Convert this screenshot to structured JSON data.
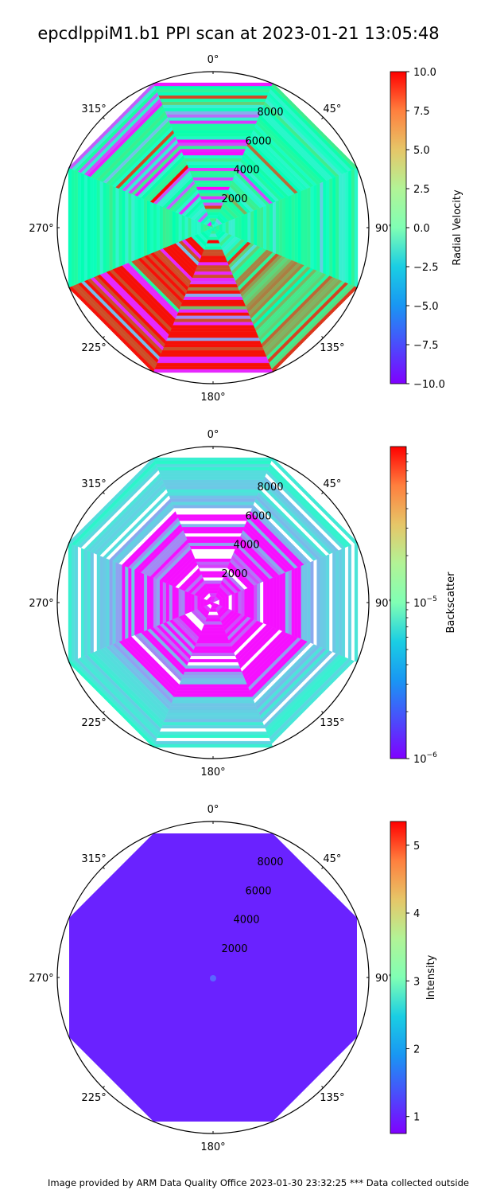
{
  "title": "epcdlppiM1.b1 PPI scan at 2023-01-21 13:05:48",
  "footer": "Image provided by ARM Data Quality Office 2023-01-30 23:32:25    *** Data collected outside",
  "footer_color": "#b22222",
  "panels": {
    "angle_labels": [
      "0°",
      "45°",
      "90°",
      "135°",
      "180°",
      "225°",
      "270°",
      "315°"
    ],
    "range_labels": [
      "2000",
      "4000",
      "6000",
      "8000"
    ]
  },
  "chart_data": [
    {
      "type": "heatmap",
      "projection": "polar",
      "title": "epcdlppiM1.b1 PPI scan at 2023-01-21 13:05:48",
      "theta_ticks": [
        "0°",
        "45°",
        "90°",
        "135°",
        "180°",
        "225°",
        "270°",
        "315°"
      ],
      "r_ticks": [
        2000,
        4000,
        6000,
        8000
      ],
      "r_max": 10000,
      "colorbar": {
        "label": "Radial Velocity",
        "scale": "linear",
        "colormap": "rainbow",
        "range": [
          -10.0,
          10.0
        ],
        "ticks": [
          "10.0",
          "7.5",
          "5.0",
          "2.5",
          "0.0",
          "−2.5",
          "−5.0",
          "−7.5",
          "−10.0"
        ]
      }
    },
    {
      "type": "heatmap",
      "projection": "polar",
      "theta_ticks": [
        "0°",
        "45°",
        "90°",
        "135°",
        "180°",
        "225°",
        "270°",
        "315°"
      ],
      "r_ticks": [
        2000,
        4000,
        6000,
        8000
      ],
      "r_max": 10000,
      "colorbar": {
        "label": "Backscatter",
        "scale": "log",
        "colormap": "rainbow",
        "range": [
          1e-06,
          0.0001
        ],
        "ticks": [
          "10",
          "10"
        ],
        "tick_exponents": [
          "−5",
          "−6"
        ]
      }
    },
    {
      "type": "heatmap",
      "projection": "polar",
      "theta_ticks": [
        "0°",
        "45°",
        "90°",
        "135°",
        "180°",
        "225°",
        "270°",
        "315°"
      ],
      "r_ticks": [
        2000,
        4000,
        6000,
        8000
      ],
      "r_max": 10000,
      "fill_value": 0.85,
      "fill_color": "#6a22ff",
      "colorbar": {
        "label": "Intensity",
        "scale": "linear",
        "colormap": "rainbow",
        "range": [
          0.75,
          5.35
        ],
        "ticks": [
          "5",
          "4",
          "3",
          "2",
          "1"
        ]
      }
    }
  ]
}
